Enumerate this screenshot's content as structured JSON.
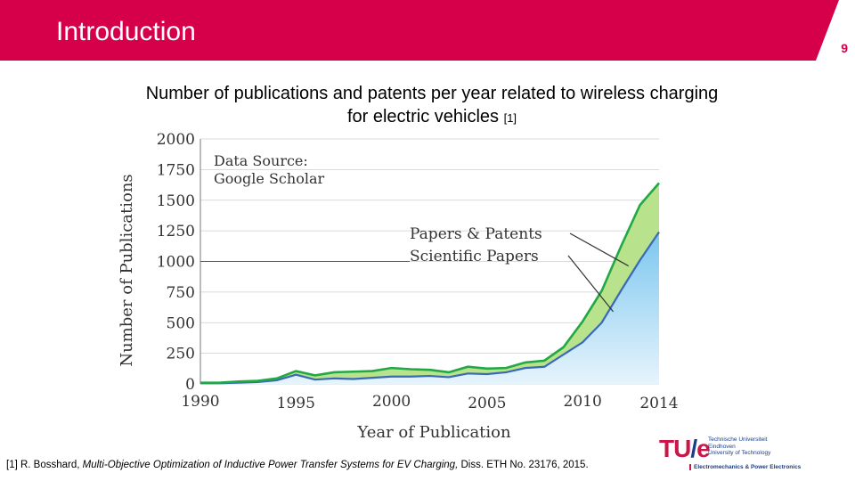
{
  "header": {
    "title": "Introduction",
    "page_number": "9",
    "accent_color": "#d6004a"
  },
  "chart_title": {
    "main": "Number of publications and patents per year related to wireless charging for electric vehicles",
    "cite": "[1]"
  },
  "chart_data": {
    "type": "area",
    "title": "",
    "xlabel": "Year of Publication",
    "ylabel": "Number of Publications",
    "xlim": [
      1990,
      2014
    ],
    "ylim": [
      0,
      2000
    ],
    "x_ticks": [
      "1990",
      "1995",
      "2000",
      "2005",
      "2010",
      "2014"
    ],
    "y_ticks": [
      "0",
      "250",
      "500",
      "750",
      "1000",
      "1250",
      "1500",
      "1750",
      "2000"
    ],
    "annotations": {
      "source": [
        "Data Source:",
        "Google Scholar"
      ]
    },
    "x": [
      1990,
      1991,
      1992,
      1993,
      1994,
      1995,
      1996,
      1997,
      1998,
      1999,
      2000,
      2001,
      2002,
      2003,
      2004,
      2005,
      2006,
      2007,
      2008,
      2009,
      2010,
      2011,
      2012,
      2013,
      2014
    ],
    "series": [
      {
        "name": "Papers & Patents",
        "color": "#22a845",
        "fill": "#b8e28c",
        "values": [
          10,
          10,
          20,
          25,
          45,
          105,
          70,
          95,
          100,
          105,
          130,
          120,
          115,
          95,
          140,
          125,
          130,
          175,
          190,
          300,
          510,
          760,
          1120,
          1460,
          1640
        ]
      },
      {
        "name": "Scientific Papers",
        "color": "#3a6ab5",
        "fill": "#7cc6ef",
        "values": [
          5,
          5,
          10,
          15,
          30,
          75,
          35,
          45,
          40,
          50,
          60,
          60,
          65,
          55,
          85,
          80,
          95,
          130,
          140,
          240,
          340,
          500,
          760,
          1010,
          1240
        ]
      }
    ]
  },
  "footnote": {
    "prefix": "[1] R. Bosshard, ",
    "italic": "Multi-Objective Optimization of Inductive Power Transfer Systems for EV Charging,",
    "suffix": " Diss. ETH No. 23176, 2015."
  },
  "logo": {
    "mark_left": "TU",
    "mark_slash": "/",
    "mark_right": "e",
    "lines": [
      "Technische Universiteit",
      "Eindhoven",
      "University of Technology"
    ],
    "dept": "Electromechanics & Power Electronics"
  }
}
